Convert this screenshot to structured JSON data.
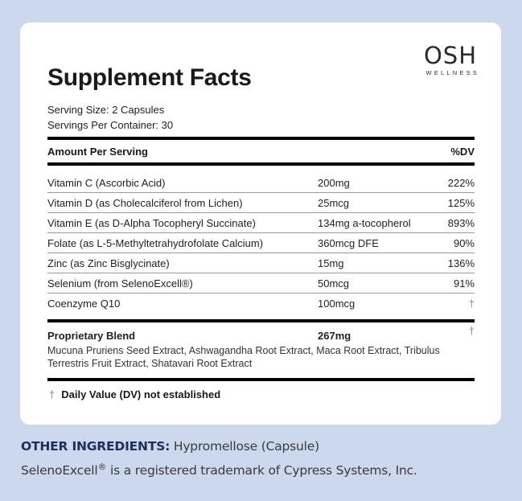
{
  "brand": {
    "name": "OSH",
    "tagline": "WELLNESS"
  },
  "title": "Supplement Facts",
  "serving": {
    "size": "Serving Size: 2 Capsules",
    "per_container": "Servings Per Container: 30"
  },
  "table": {
    "header": {
      "amount_label": "Amount Per Serving",
      "dv_label": "%DV"
    },
    "rows": [
      {
        "name": "Vitamin C (Ascorbic Acid)",
        "amount": "200mg",
        "dv": "222%"
      },
      {
        "name": "Vitamin D (as Cholecalciferol from Lichen)",
        "amount": "25mcg",
        "dv": "125%"
      },
      {
        "name": "Vitamin E (as D-Alpha Tocopheryl Succinate)",
        "amount": "134mg a-tocopherol",
        "dv": "893%"
      },
      {
        "name": "Folate (as L-5-Methyltetrahydrofolate Calcium)",
        "amount": "360mcg DFE",
        "dv": "90%"
      },
      {
        "name": "Zinc (as Zinc Bisglycinate)",
        "amount": "15mg",
        "dv": "136%"
      },
      {
        "name": "Selenium (from SelenoExcell®)",
        "amount": "50mcg",
        "dv": "91%"
      },
      {
        "name": "Coenzyme Q10",
        "amount": "100mcg",
        "dv": "†"
      }
    ],
    "blend": {
      "name": "Proprietary Blend",
      "amount": "267mg",
      "dv": "†",
      "description": "Mucuna Pruriens Seed Extract, Ashwagandha Root Extract, Maca Root Extract, Tribulus Terrestris Fruit Extract, Shatavari Root Extract"
    },
    "footnote": {
      "symbol": "†",
      "text": "Daily Value (DV) not established"
    }
  },
  "other_ingredients": {
    "label": "OTHER INGREDIENTS:",
    "value": " Hypromellose (Capsule)",
    "trademark_name": "SelenoExcell",
    "trademark_symbol": "®",
    "trademark_text": " is a registered trademark of Cypress Systems, Inc."
  },
  "colors": {
    "background": "#cbd8ee",
    "card": "#ffffff",
    "label_accent": "#1f2f5c"
  }
}
